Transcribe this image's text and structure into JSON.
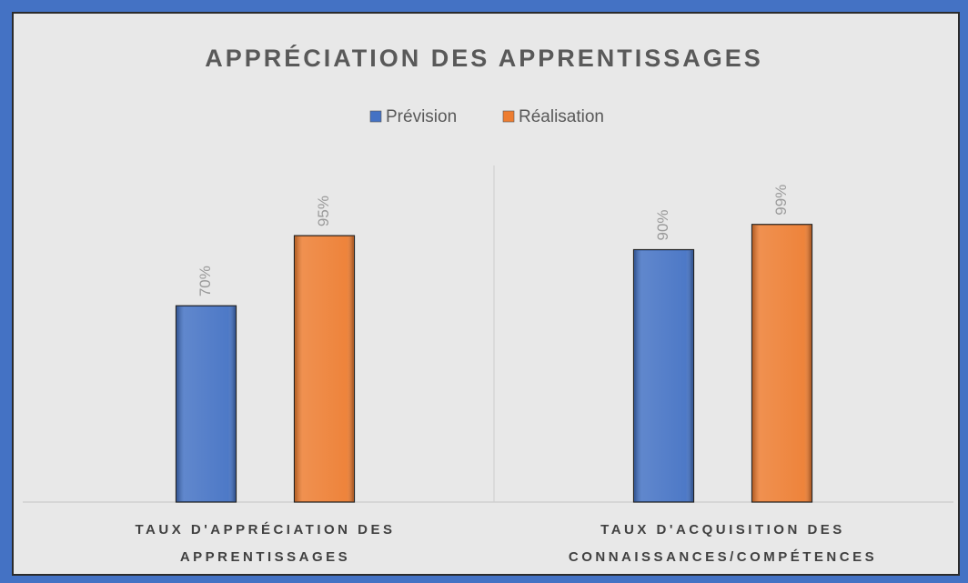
{
  "chart_data": {
    "type": "bar",
    "title": "APPRÉCIATION DES APPRENTISSAGES",
    "categories": [
      "TAUX D'APPRÉCIATION DES APPRENTISSAGES",
      "TAUX D'ACQUISITION DES CONNAISSANCES/COMPÉTENCES"
    ],
    "series": [
      {
        "name": "Prévision",
        "color": "#4472c4",
        "values": [
          70,
          90
        ],
        "value_labels": [
          "70%",
          "90%"
        ]
      },
      {
        "name": "Réalisation",
        "color": "#ed7d31",
        "values": [
          95,
          99
        ],
        "value_labels": [
          "95%",
          "99%"
        ]
      }
    ],
    "ylim": [
      0,
      120
    ],
    "legend": "top"
  }
}
